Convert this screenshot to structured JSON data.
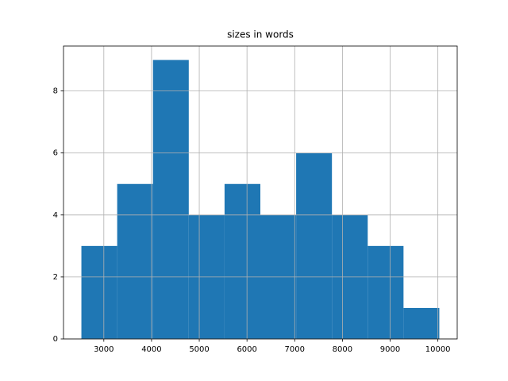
{
  "chart_data": {
    "type": "histogram",
    "title": "sizes in words",
    "bins": [
      2530,
      3280,
      4030,
      4780,
      5530,
      6280,
      7030,
      7780,
      8530,
      9280,
      10030
    ],
    "values": [
      3,
      5,
      9,
      4,
      5,
      4,
      6,
      4,
      3,
      1
    ],
    "color": "#1f77b4",
    "xlim": [
      2155,
      10405
    ],
    "xticks": [
      3000,
      4000,
      5000,
      6000,
      7000,
      8000,
      9000,
      10000
    ],
    "ylim": [
      0,
      9.45
    ],
    "yticks": [
      0,
      2,
      4,
      6,
      8
    ],
    "grid": true
  }
}
